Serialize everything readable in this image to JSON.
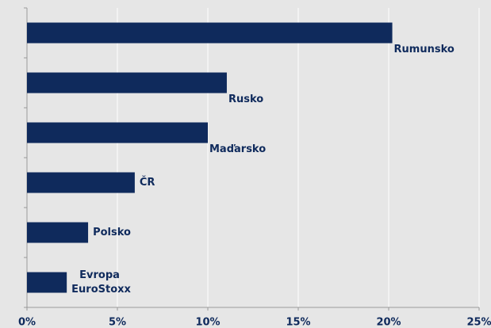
{
  "chart_data": {
    "type": "bar",
    "orientation": "horizontal",
    "categories": [
      "Rumunsko",
      "Rusko",
      "Maďarsko",
      "ČR",
      "Polsko",
      [
        "Evropa",
        "EuroStoxx"
      ]
    ],
    "values": [
      20.2,
      11.05,
      10.0,
      5.96,
      3.38,
      2.2
    ],
    "color": "#0f2a5c",
    "xlim": [
      0,
      25
    ],
    "xticks": [
      {
        "value": 0,
        "label": "0%"
      },
      {
        "value": 5,
        "label": "5%"
      },
      {
        "value": 10,
        "label": "10%"
      },
      {
        "value": 15,
        "label": "15%"
      },
      {
        "value": 20,
        "label": "20%"
      },
      {
        "value": 25,
        "label": "25%"
      }
    ],
    "grid": true
  }
}
